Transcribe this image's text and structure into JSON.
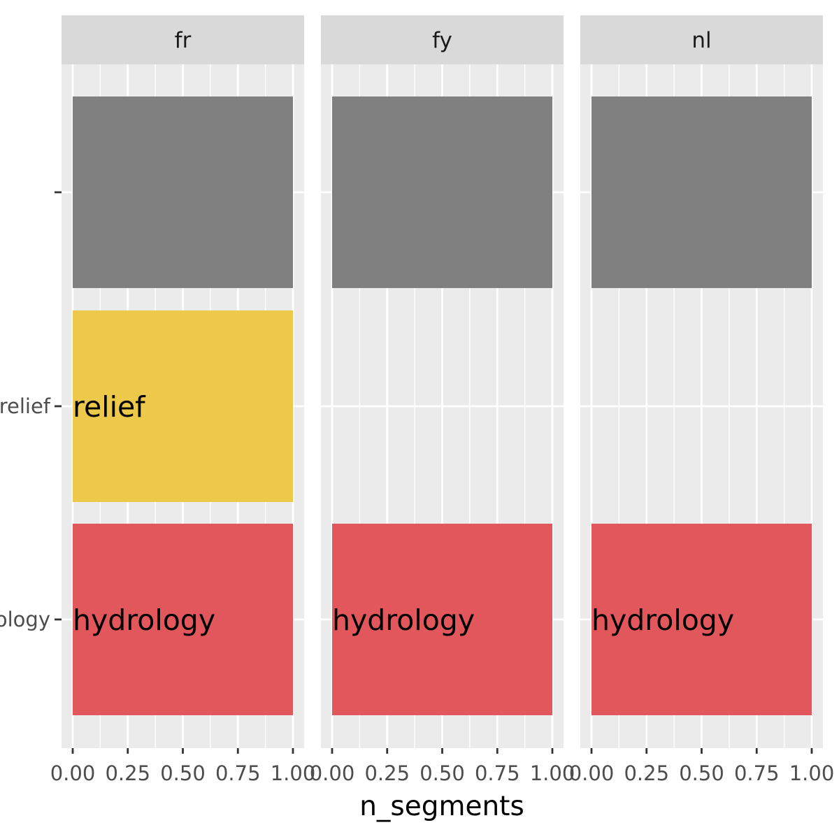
{
  "chart_data": {
    "type": "bar",
    "orientation": "horizontal",
    "facets": [
      "fr",
      "fy",
      "nl"
    ],
    "categories": [
      "",
      "relief",
      "hydrology"
    ],
    "xlabel": "n_segments",
    "ylabel": "",
    "xlim": [
      0,
      1
    ],
    "xticks": [
      0,
      0.25,
      0.5,
      0.75,
      1
    ],
    "xtick_labels": [
      "0.00",
      "0.25",
      "0.50",
      "0.75",
      "1.00"
    ],
    "grid": true,
    "legend": "none",
    "bars": [
      {
        "facet": "fr",
        "category": "",
        "label": "",
        "value": 1,
        "color": "#808080"
      },
      {
        "facet": "fr",
        "category": "relief",
        "label": "relief",
        "value": 1,
        "color": "#ECC94B"
      },
      {
        "facet": "fr",
        "category": "hydrology",
        "label": "hydrology",
        "value": 1,
        "color": "#E1575C"
      },
      {
        "facet": "fy",
        "category": "",
        "label": "",
        "value": 1,
        "color": "#808080"
      },
      {
        "facet": "fy",
        "category": "hydrology",
        "label": "hydrology",
        "value": 1,
        "color": "#E1575C"
      },
      {
        "facet": "nl",
        "category": "",
        "label": "",
        "value": 1,
        "color": "#808080"
      },
      {
        "facet": "nl",
        "category": "hydrology",
        "label": "hydrology",
        "value": 1,
        "color": "#E1575C"
      }
    ],
    "colors": {
      "panel_background": "#EBEBEB",
      "strip_background": "#D9D9D9",
      "grid": "#FFFFFF",
      "tick": "#333333"
    }
  }
}
